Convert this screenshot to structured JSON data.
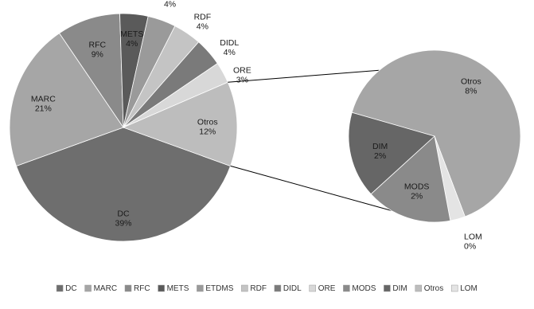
{
  "chart_data": {
    "type": "pie",
    "subtype": "bar-of-pie",
    "title": "",
    "main_pie": {
      "slices": [
        {
          "label": "DC",
          "value": 39,
          "display": "39%",
          "color": "#6e6e6e"
        },
        {
          "label": "MARC",
          "value": 21,
          "display": "21%",
          "color": "#a6a6a6"
        },
        {
          "label": "RFC",
          "value": 9,
          "display": "9%",
          "color": "#8a8a8a"
        },
        {
          "label": "METS",
          "value": 4,
          "display": "4%",
          "color": "#5a5a5a"
        },
        {
          "label": "ETDMS",
          "value": 4,
          "display": "4%",
          "color": "#9a9a9a"
        },
        {
          "label": "RDF",
          "value": 4,
          "display": "4%",
          "color": "#c4c4c4"
        },
        {
          "label": "DIDL",
          "value": 4,
          "display": "4%",
          "color": "#7a7a7a"
        },
        {
          "label": "ORE",
          "value": 3,
          "display": "3%",
          "color": "#d8d8d8"
        },
        {
          "label": "Otros",
          "value": 12,
          "display": "12%",
          "color": "#bdbdbd"
        }
      ]
    },
    "secondary_pie": {
      "slices": [
        {
          "label": "Otros",
          "value": 8,
          "display": "8%",
          "color": "#a6a6a6"
        },
        {
          "label": "LOM",
          "value": 0.35,
          "display": "0%",
          "color": "#e4e4e4"
        },
        {
          "label": "MODS",
          "value": 2,
          "display": "2%",
          "color": "#8a8a8a"
        },
        {
          "label": "DIM",
          "value": 2,
          "display": "2%",
          "color": "#666666"
        }
      ]
    },
    "legend": {
      "placement": "bottom",
      "items": [
        {
          "label": "DC",
          "color": "#6e6e6e"
        },
        {
          "label": "MARC",
          "color": "#a6a6a6"
        },
        {
          "label": "RFC",
          "color": "#8a8a8a"
        },
        {
          "label": "METS",
          "color": "#5a5a5a"
        },
        {
          "label": "ETDMS",
          "color": "#9a9a9a"
        },
        {
          "label": "RDF",
          "color": "#c4c4c4"
        },
        {
          "label": "DIDL",
          "color": "#7a7a7a"
        },
        {
          "label": "ORE",
          "color": "#d8d8d8"
        },
        {
          "label": "MODS",
          "color": "#8a8a8a"
        },
        {
          "label": "DIM",
          "color": "#666666"
        },
        {
          "label": "Otros",
          "color": "#bdbdbd"
        },
        {
          "label": "LOM",
          "color": "#e4e4e4"
        }
      ]
    }
  }
}
